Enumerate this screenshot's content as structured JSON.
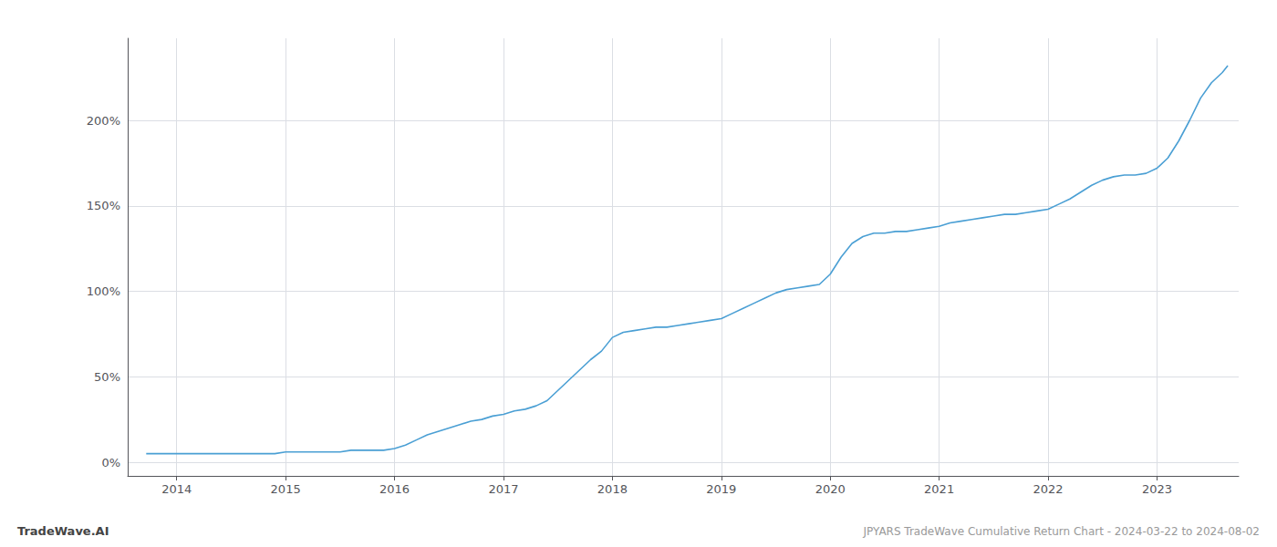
{
  "chart_data": {
    "type": "line",
    "title": "JPYARS TradeWave Cumulative Return Chart - 2024-03-22 to 2024-08-02",
    "annotations": [
      "TradeWave.AI"
    ],
    "color": "#4a9fd4",
    "grid": true,
    "x": [
      2013.72,
      2014.0,
      2014.1,
      2014.2,
      2014.3,
      2014.4,
      2014.5,
      2014.6,
      2014.7,
      2014.8,
      2014.9,
      2015.0,
      2015.1,
      2015.2,
      2015.3,
      2015.4,
      2015.5,
      2015.6,
      2015.7,
      2015.8,
      2015.9,
      2016.0,
      2016.1,
      2016.2,
      2016.3,
      2016.4,
      2016.5,
      2016.6,
      2016.7,
      2016.8,
      2016.9,
      2017.0,
      2017.1,
      2017.2,
      2017.3,
      2017.4,
      2017.5,
      2017.6,
      2017.7,
      2017.8,
      2017.9,
      2018.0,
      2018.1,
      2018.2,
      2018.3,
      2018.4,
      2018.5,
      2018.6,
      2018.7,
      2018.8,
      2018.9,
      2019.0,
      2019.1,
      2019.2,
      2019.3,
      2019.4,
      2019.5,
      2019.6,
      2019.7,
      2019.8,
      2019.9,
      2020.0,
      2020.1,
      2020.2,
      2020.3,
      2020.4,
      2020.5,
      2020.6,
      2020.7,
      2020.8,
      2020.9,
      2021.0,
      2021.1,
      2021.2,
      2021.3,
      2021.4,
      2021.5,
      2021.6,
      2021.7,
      2021.8,
      2021.9,
      2022.0,
      2022.1,
      2022.2,
      2022.3,
      2022.4,
      2022.5,
      2022.6,
      2022.7,
      2022.8,
      2022.9,
      2023.0,
      2023.1,
      2023.2,
      2023.3,
      2023.4,
      2023.5,
      2023.6,
      2023.65
    ],
    "values": [
      5,
      5,
      5,
      5,
      5,
      5,
      5,
      5,
      5,
      5,
      5,
      6,
      6,
      6,
      6,
      6,
      6,
      7,
      7,
      7,
      7,
      8,
      10,
      13,
      16,
      18,
      20,
      22,
      24,
      25,
      27,
      28,
      30,
      31,
      33,
      36,
      42,
      48,
      54,
      60,
      65,
      73,
      76,
      77,
      78,
      79,
      79,
      80,
      81,
      82,
      83,
      84,
      87,
      90,
      93,
      96,
      99,
      101,
      102,
      103,
      104,
      110,
      120,
      128,
      132,
      134,
      134,
      135,
      135,
      136,
      137,
      138,
      140,
      141,
      142,
      143,
      144,
      145,
      145,
      146,
      147,
      148,
      151,
      154,
      158,
      162,
      165,
      167,
      168,
      168,
      169,
      172,
      178,
      188,
      200,
      213,
      222,
      228,
      232
    ],
    "xlim": [
      2013.55,
      2023.75
    ],
    "xticks": [
      2014,
      2015,
      2016,
      2017,
      2018,
      2019,
      2020,
      2021,
      2022,
      2023
    ],
    "ylim": [
      -8,
      248
    ],
    "yticks": [
      {
        "value": 0,
        "label": "0%"
      },
      {
        "value": 50,
        "label": "50%"
      },
      {
        "value": 100,
        "label": "100%"
      },
      {
        "value": 150,
        "label": "150%"
      },
      {
        "value": 200,
        "label": "200%"
      }
    ]
  }
}
